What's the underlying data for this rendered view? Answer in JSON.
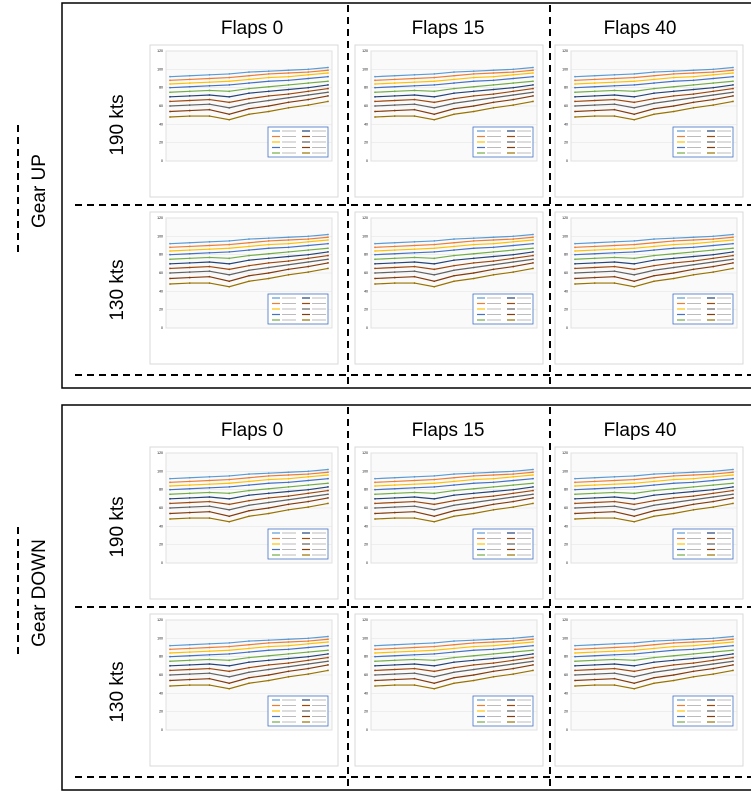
{
  "panels": [
    {
      "label": "Gear UP",
      "columns": [
        "Flaps 0",
        "Flaps 15",
        "Flaps 40"
      ],
      "rows": [
        "190 kts",
        "130 kts"
      ]
    },
    {
      "label": "Gear DOWN",
      "columns": [
        "Flaps 0",
        "Flaps 15",
        "Flaps 40"
      ],
      "rows": [
        "190 kts",
        "130 kts"
      ]
    }
  ],
  "thumbnail_chart": {
    "type": "line",
    "ylim": [
      0,
      120
    ],
    "yticks": [
      0,
      20,
      40,
      60,
      80,
      100,
      120
    ],
    "series": [
      {
        "color": "#5b9bd5",
        "values": [
          92,
          93,
          94,
          95,
          97,
          98,
          99,
          100,
          102
        ]
      },
      {
        "color": "#ed7d31",
        "values": [
          88,
          89,
          90,
          91,
          93,
          95,
          96,
          97,
          99
        ]
      },
      {
        "color": "#ffc000",
        "values": [
          84,
          85,
          86,
          87,
          89,
          91,
          92,
          94,
          96
        ]
      },
      {
        "color": "#4472c4",
        "values": [
          80,
          81,
          82,
          83,
          85,
          87,
          88,
          90,
          92
        ]
      },
      {
        "color": "#70ad47",
        "values": [
          75,
          76,
          77,
          76,
          79,
          81,
          83,
          85,
          87
        ]
      },
      {
        "color": "#264478",
        "values": [
          70,
          71,
          72,
          70,
          74,
          76,
          78,
          80,
          83
        ]
      },
      {
        "color": "#9e480e",
        "values": [
          65,
          66,
          67,
          64,
          68,
          71,
          73,
          76,
          79
        ]
      },
      {
        "color": "#636363",
        "values": [
          60,
          61,
          62,
          58,
          63,
          66,
          69,
          72,
          75
        ]
      },
      {
        "color": "#843c0c",
        "values": [
          54,
          55,
          56,
          51,
          57,
          60,
          64,
          67,
          71
        ]
      },
      {
        "color": "#997300",
        "values": [
          48,
          49,
          49,
          45,
          51,
          54,
          58,
          61,
          65
        ]
      }
    ]
  }
}
